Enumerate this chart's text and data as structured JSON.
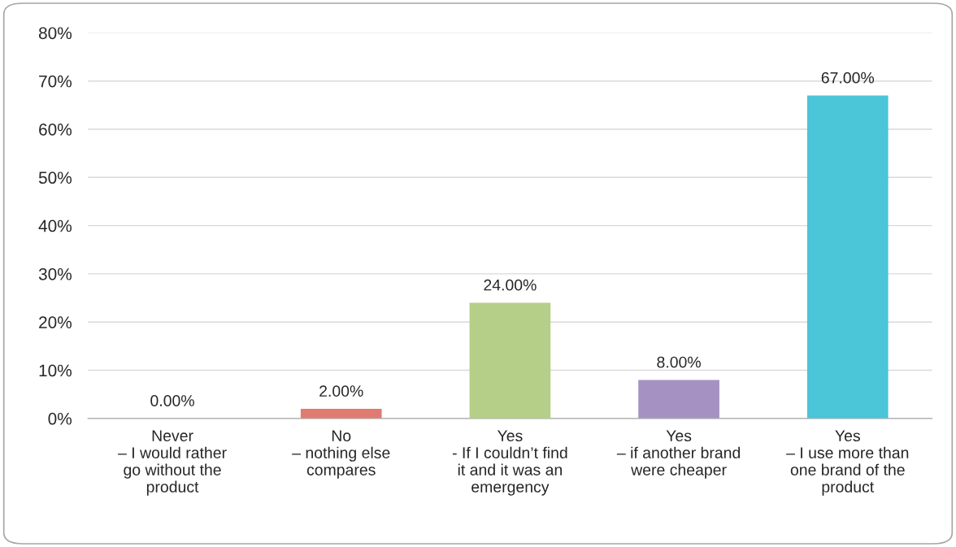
{
  "chart_data": {
    "type": "bar",
    "categories": [
      "Never\n– I would rather\ngo without the\nproduct",
      "No\n– nothing else\ncompares",
      "Yes\n- If I couldn’t find\nit and it was an\nemergency",
      "Yes\n– if another brand\nwere cheaper",
      "Yes\n– I use more than\none brand of the\nproduct"
    ],
    "values": [
      0,
      2,
      24,
      8,
      67
    ],
    "colors": [
      "#e07b72",
      "#e07b72",
      "#b5cf88",
      "#a592c2",
      "#4bc5d8"
    ],
    "value_labels": [
      "0.00%",
      "2.00%",
      "24.00%",
      "8.00%",
      "67.00%"
    ],
    "ylim": [
      0,
      80
    ],
    "yticks": [
      {
        "value": 0,
        "label": "0%"
      },
      {
        "value": 10,
        "label": "10%"
      },
      {
        "value": 20,
        "label": "20%"
      },
      {
        "value": 30,
        "label": "30%"
      },
      {
        "value": 40,
        "label": "40%"
      },
      {
        "value": 50,
        "label": "50%"
      },
      {
        "value": 60,
        "label": "60%"
      },
      {
        "value": 70,
        "label": "70%"
      },
      {
        "value": 80,
        "label": "80%"
      }
    ],
    "grid": "y",
    "legend": false
  }
}
